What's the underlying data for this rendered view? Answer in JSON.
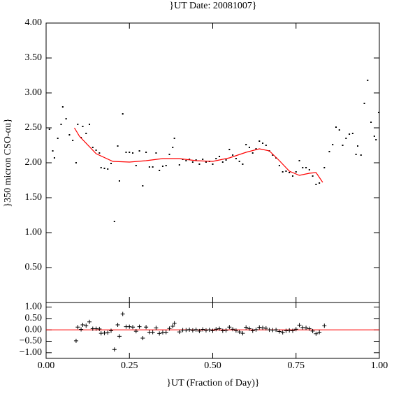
{
  "chart_data": [
    {
      "type": "scatter",
      "title": "}UT Date: 20081007}",
      "y_label": "}350 micron CSO-αu}",
      "xlim": [
        0,
        1
      ],
      "ylim": [
        0,
        4
      ],
      "xticks": [
        0,
        0.25,
        0.5,
        0.75,
        1
      ],
      "yticks": [
        {
          "value": 0.5,
          "label": "0.50"
        },
        {
          "value": 1,
          "label": "1.00"
        },
        {
          "value": 1.5,
          "label": "1.50"
        },
        {
          "value": 2,
          "label": "2.00"
        },
        {
          "value": 2.5,
          "label": "2.50"
        },
        {
          "value": 3,
          "label": "3.00"
        },
        {
          "value": 3.5,
          "label": "3.50"
        },
        {
          "value": 4,
          "label": "4.00"
        }
      ],
      "series": [
        {
          "marker": "dot",
          "color": "#000000",
          "x": [
            0.01,
            0.02,
            0.025,
            0.035,
            0.045,
            0.05,
            0.06,
            0.07,
            0.08,
            0.09,
            0.095,
            0.105,
            0.11,
            0.12,
            0.13,
            0.14,
            0.15,
            0.16,
            0.165,
            0.175,
            0.185,
            0.195,
            0.205,
            0.215,
            0.22,
            0.23,
            0.24,
            0.25,
            0.26,
            0.27,
            0.28,
            0.29,
            0.3,
            0.31,
            0.32,
            0.33,
            0.34,
            0.35,
            0.36,
            0.37,
            0.38,
            0.385,
            0.4,
            0.41,
            0.42,
            0.43,
            0.44,
            0.45,
            0.46,
            0.47,
            0.48,
            0.49,
            0.5,
            0.51,
            0.52,
            0.53,
            0.54,
            0.55,
            0.56,
            0.57,
            0.58,
            0.59,
            0.6,
            0.61,
            0.62,
            0.63,
            0.64,
            0.65,
            0.66,
            0.67,
            0.68,
            0.69,
            0.7,
            0.71,
            0.72,
            0.73,
            0.74,
            0.75,
            0.76,
            0.77,
            0.78,
            0.79,
            0.8,
            0.81,
            0.82,
            0.835,
            0.85,
            0.86,
            0.87,
            0.88,
            0.89,
            0.9,
            0.91,
            0.92,
            0.93,
            0.935,
            0.945,
            0.955,
            0.965,
            0.975,
            0.985,
            0.99,
            0.998
          ],
          "values": [
            2.48,
            2.17,
            2.07,
            2.35,
            2.55,
            2.8,
            2.63,
            2.4,
            2.32,
            2.0,
            2.55,
            2.36,
            2.52,
            2.42,
            2.55,
            2.22,
            2.18,
            2.14,
            1.93,
            1.92,
            1.91,
            1.99,
            1.16,
            2.24,
            1.74,
            2.7,
            2.15,
            2.15,
            2.14,
            1.96,
            2.17,
            1.67,
            2.15,
            1.94,
            1.94,
            2.14,
            1.89,
            1.95,
            1.96,
            2.12,
            2.22,
            2.35,
            1.97,
            2.05,
            2.03,
            2.05,
            2.01,
            2.04,
            1.98,
            2.05,
            2.01,
            2.02,
            1.98,
            2.06,
            2.09,
            2.01,
            2.04,
            2.19,
            2.11,
            2.06,
            2.02,
            1.98,
            2.26,
            2.22,
            2.14,
            2.2,
            2.31,
            2.28,
            2.25,
            2.17,
            2.11,
            2.07,
            1.96,
            1.87,
            1.88,
            1.86,
            1.81,
            1.87,
            2.03,
            1.93,
            1.93,
            1.9,
            1.81,
            1.69,
            1.71,
            1.93,
            2.16,
            2.26,
            2.51,
            2.47,
            2.25,
            2.35,
            2.41,
            2.42,
            2.12,
            2.24,
            2.11,
            2.85,
            3.18,
            2.58,
            2.38,
            2.33,
            2.72
          ]
        },
        {
          "marker": "line",
          "color": "#ff0000",
          "x": [
            0.085,
            0.1,
            0.15,
            0.2,
            0.25,
            0.3,
            0.35,
            0.4,
            0.45,
            0.5,
            0.55,
            0.6,
            0.64,
            0.67,
            0.7,
            0.73,
            0.76,
            0.79,
            0.81,
            0.83
          ],
          "values": [
            2.5,
            2.38,
            2.13,
            2.02,
            2.01,
            2.03,
            2.06,
            2.06,
            2.03,
            2.02,
            2.07,
            2.15,
            2.2,
            2.17,
            2.03,
            1.88,
            1.82,
            1.85,
            1.86,
            1.72
          ]
        }
      ]
    },
    {
      "type": "scatter",
      "x_label": "}UT (Fraction of Day)}",
      "xlim": [
        0,
        1
      ],
      "ylim": [
        -1.25,
        1.2
      ],
      "xticks": [
        {
          "value": 0,
          "label": "0.00"
        },
        {
          "value": 0.25,
          "label": "0.25"
        },
        {
          "value": 0.5,
          "label": "0.50"
        },
        {
          "value": 0.75,
          "label": "0.75"
        },
        {
          "value": 1,
          "label": "1.00"
        }
      ],
      "yticks": [
        {
          "value": -1,
          "label": "−1.00"
        },
        {
          "value": -0.5,
          "label": "−0.50"
        },
        {
          "value": 0,
          "label": "0.00"
        },
        {
          "value": 0.5,
          "label": "0.50"
        },
        {
          "value": 1,
          "label": "1.00"
        }
      ],
      "reference_line": {
        "value": 0,
        "color": "#ff0000"
      },
      "series": [
        {
          "marker": "cross",
          "color": "#000000",
          "x": [
            0.09,
            0.095,
            0.105,
            0.11,
            0.12,
            0.13,
            0.14,
            0.15,
            0.16,
            0.165,
            0.175,
            0.185,
            0.195,
            0.205,
            0.215,
            0.22,
            0.23,
            0.24,
            0.25,
            0.26,
            0.27,
            0.28,
            0.29,
            0.3,
            0.31,
            0.32,
            0.33,
            0.34,
            0.35,
            0.36,
            0.37,
            0.38,
            0.385,
            0.4,
            0.41,
            0.42,
            0.43,
            0.44,
            0.45,
            0.46,
            0.47,
            0.48,
            0.49,
            0.5,
            0.51,
            0.52,
            0.53,
            0.54,
            0.55,
            0.56,
            0.57,
            0.58,
            0.59,
            0.6,
            0.61,
            0.62,
            0.63,
            0.64,
            0.65,
            0.66,
            0.67,
            0.68,
            0.69,
            0.7,
            0.71,
            0.72,
            0.73,
            0.74,
            0.75,
            0.76,
            0.77,
            0.78,
            0.79,
            0.8,
            0.81,
            0.82,
            0.835
          ],
          "values": [
            -0.48,
            0.12,
            0.02,
            0.22,
            0.18,
            0.35,
            0.05,
            0.05,
            0.04,
            -0.15,
            -0.14,
            -0.12,
            -0.04,
            -0.86,
            0.22,
            -0.28,
            0.7,
            0.14,
            0.14,
            0.12,
            -0.06,
            0.14,
            -0.36,
            0.12,
            -0.1,
            -0.1,
            0.09,
            -0.16,
            -0.11,
            -0.1,
            0.06,
            0.16,
            0.29,
            -0.09,
            -0.01,
            -0.01,
            0.01,
            -0.02,
            0.01,
            -0.05,
            0.02,
            -0.02,
            0.0,
            -0.04,
            0.03,
            0.05,
            -0.04,
            -0.02,
            0.12,
            0.03,
            -0.03,
            -0.09,
            -0.15,
            0.11,
            0.05,
            -0.04,
            0.01,
            0.11,
            0.09,
            0.07,
            0.0,
            -0.01,
            0.0,
            -0.07,
            -0.11,
            -0.04,
            -0.02,
            -0.04,
            0.03,
            0.21,
            0.1,
            0.09,
            0.05,
            -0.05,
            -0.17,
            -0.1,
            0.18
          ]
        }
      ]
    }
  ]
}
